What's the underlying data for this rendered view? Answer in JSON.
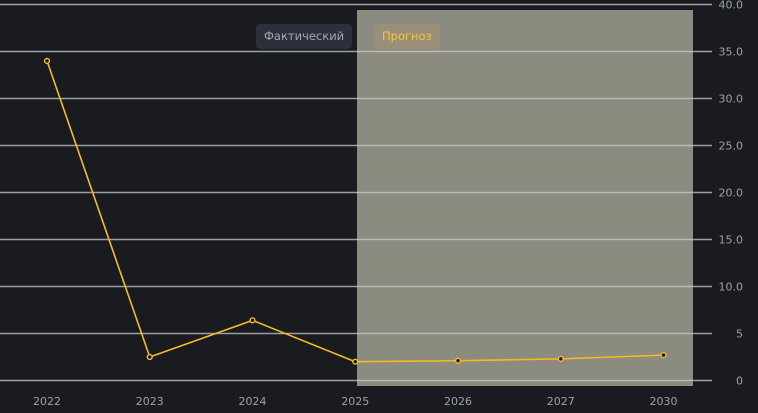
{
  "tabs": {
    "actual_label": "Фактический",
    "forecast_label": "Прогноз"
  },
  "colors": {
    "background": "#1a1b21",
    "forecast_region": "#8c8b80",
    "line": "#f5bc22",
    "gridline": "#c9c9c9",
    "tick_label": "#9ba0a8"
  },
  "chart_data": {
    "type": "line",
    "title": "",
    "xlabel": "",
    "ylabel": "",
    "categories": [
      "2022",
      "2023",
      "2024",
      "2025",
      "2026",
      "2027",
      "2030"
    ],
    "series": [
      {
        "values": [
          34.0,
          2.5,
          6.4,
          2.0,
          2.1,
          2.3,
          2.7
        ]
      }
    ],
    "forecast_start": "2025",
    "ylim": [
      0,
      40
    ],
    "y_ticks": [
      "0",
      "5",
      "10.0",
      "15.0",
      "20.0",
      "25.0",
      "30.0",
      "35.0",
      "40.0"
    ],
    "y_tick_values": [
      0,
      5,
      10,
      15,
      20,
      25,
      30,
      35,
      40
    ],
    "grid": true,
    "y_axis_position": "right"
  }
}
